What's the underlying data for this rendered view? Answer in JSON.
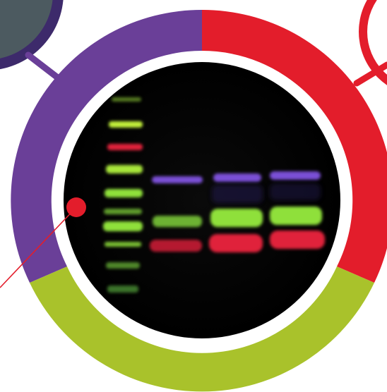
{
  "colors": {
    "ring_purple": "#6a3f98",
    "ring_red": "#e31d2b",
    "ring_green": "#a9c22b",
    "connector_purple": "#6a3f98",
    "connector_red": "#e31d2b",
    "pointer_dot": "#e31d2b",
    "partial_circle_dark": "#3d2a6b",
    "partial_circle_grey": "#4c5a60",
    "blot_background": "#000000",
    "band_purple": "#7a4fd6",
    "band_green": "#8fe03a",
    "band_red": "#e0203a",
    "ladder_green": "#9ee23c",
    "ladder_red": "#e0203a"
  },
  "blot": {
    "lanes": 4,
    "ladder_band_colors": [
      "green",
      "green",
      "red",
      "green",
      "green",
      "green",
      "green",
      "green",
      "green",
      "green"
    ],
    "sample_lanes": [
      {
        "bands": [
          "purple",
          "green",
          "red"
        ]
      },
      {
        "bands": [
          "purple",
          "green",
          "red"
        ]
      },
      {
        "bands": [
          "purple",
          "green",
          "red"
        ]
      }
    ]
  }
}
